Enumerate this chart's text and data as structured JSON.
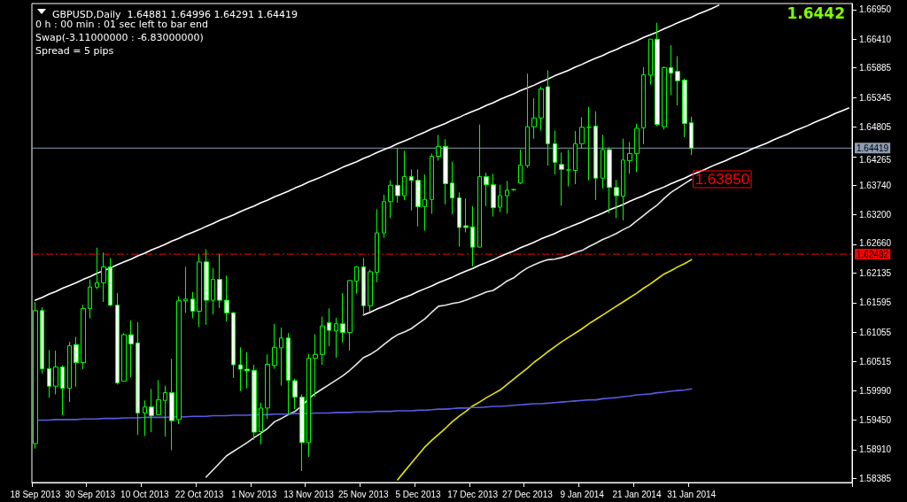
{
  "chart_data": {
    "type": "candlestick",
    "title": "GBPUSD,Daily  1.64881 1.64996 1.64291 1.64419",
    "annotations": [
      "0 h : 00 min : 01 sec left to bar end",
      "Swap(-3.11000000 : -6.83000000)",
      "Spread = 5 pips",
      "1.6442",
      {
        "text": "1.63850",
        "x": "31 Jan 2014",
        "y": 1.6385
      }
    ],
    "categories": [
      "18 Sep 2013",
      null,
      null,
      null,
      null,
      null,
      null,
      null,
      "30 Sep 2013",
      null,
      null,
      null,
      null,
      null,
      null,
      null,
      "10 Oct 2013",
      null,
      null,
      null,
      null,
      null,
      null,
      null,
      "22 Oct 2013",
      null,
      null,
      null,
      null,
      null,
      null,
      null,
      "1 Nov 2013",
      null,
      null,
      null,
      null,
      null,
      null,
      null,
      "13 Nov 2013",
      null,
      null,
      null,
      null,
      null,
      null,
      null,
      "25 Nov 2013",
      null,
      null,
      null,
      null,
      null,
      null,
      null,
      "5 Dec 2013",
      null,
      null,
      null,
      null,
      null,
      null,
      null,
      "17 Dec 2013",
      null,
      null,
      null,
      null,
      null,
      null,
      null,
      "27 Dec 2013",
      null,
      null,
      null,
      null,
      null,
      null,
      null,
      "9 Jan 2014",
      null,
      null,
      null,
      null,
      null,
      null,
      null,
      "21 Jan 2014",
      null,
      null,
      null,
      null,
      null,
      null,
      null,
      "31 Jan 2014",
      null,
      null,
      null,
      null,
      null,
      null,
      null,
      null,
      null,
      null,
      null,
      null,
      null,
      null,
      null,
      null,
      null,
      null,
      null,
      null,
      null,
      null,
      null
    ],
    "ylim": [
      1.5831,
      1.6706
    ],
    "yticks": [
      {
        "value": 1.6695,
        "label": "1.66950"
      },
      {
        "value": 1.6641,
        "label": "1.66410"
      },
      1.65885,
      1.65345,
      1.64805,
      1.64265,
      {
        "value": 1.6374,
        "label": "1.63740"
      },
      {
        "value": 1.632,
        "label": "1.63200"
      },
      {
        "value": 1.6266,
        "label": "1.62660"
      },
      1.62135,
      1.61595,
      1.61055,
      1.60515,
      {
        "value": 1.5999,
        "label": "1.59990"
      },
      {
        "value": 1.5945,
        "label": "1.59450"
      },
      {
        "value": 1.5891,
        "label": "1.58910"
      },
      1.58385
    ],
    "marker": "none",
    "ref_lines": [
      {
        "axis": "y",
        "value": 1.64419,
        "label": "1.64419",
        "color": "#8c9cb0",
        "line_style": "solid"
      },
      {
        "axis": "y",
        "value": 1.62482,
        "label": "1.62482",
        "color": "#ff0000",
        "line_style": "dashed"
      }
    ],
    "series": [
      {
        "type": "candlestick",
        "color": "#00ff00",
        "ohlc": [
          [
            1.5902,
            1.6161,
            1.5893,
            1.6145
          ],
          [
            1.6145,
            1.6151,
            1.603,
            1.6039
          ],
          [
            1.6039,
            1.6073,
            1.5986,
            1.6007
          ],
          [
            1.6007,
            1.6072,
            1.5992,
            1.6042
          ],
          [
            1.6042,
            1.6045,
            1.5954,
            1.6003
          ],
          [
            1.6003,
            1.6088,
            1.5978,
            1.6081
          ],
          [
            1.6083,
            1.6097,
            1.6006,
            1.605
          ],
          [
            1.605,
            1.6156,
            1.6038,
            1.6149
          ],
          [
            1.6149,
            1.6202,
            1.6131,
            1.6188
          ],
          [
            1.6188,
            1.626,
            1.6184,
            1.6196
          ],
          [
            1.6196,
            1.6251,
            1.6161,
            1.6225
          ],
          [
            1.6225,
            1.6241,
            1.6153,
            1.6155
          ],
          [
            1.6155,
            1.6177,
            1.601,
            1.6013
          ],
          [
            1.6016,
            1.6104,
            1.6016,
            1.6101
          ],
          [
            1.6101,
            1.6127,
            1.6023,
            1.6084
          ],
          [
            1.6086,
            1.6124,
            1.5918,
            1.5958
          ],
          [
            1.5958,
            1.5981,
            1.5916,
            1.5969
          ],
          [
            1.5969,
            1.6002,
            1.5923,
            1.5953
          ],
          [
            1.5955,
            1.6018,
            1.5954,
            1.5982
          ],
          [
            1.5981,
            1.6008,
            1.5915,
            1.5995
          ],
          [
            1.5995,
            1.6057,
            1.589,
            1.5944
          ],
          [
            1.5946,
            1.6171,
            1.5938,
            1.6163
          ],
          [
            1.6163,
            1.6225,
            1.6141,
            1.6166
          ],
          [
            1.6166,
            1.6179,
            1.6131,
            1.6144
          ],
          [
            1.6144,
            1.6248,
            1.6115,
            1.6234
          ],
          [
            1.6234,
            1.6257,
            1.6119,
            1.6164
          ],
          [
            1.6164,
            1.6223,
            1.6138,
            1.6202
          ],
          [
            1.6202,
            1.6248,
            1.615,
            1.6164
          ],
          [
            1.6164,
            1.6209,
            1.6125,
            1.6141
          ],
          [
            1.6141,
            1.6143,
            1.6022,
            1.6046
          ],
          [
            1.6046,
            1.6078,
            1.5998,
            1.6038
          ],
          [
            1.6038,
            1.6069,
            1.6003,
            1.6035
          ],
          [
            1.6036,
            1.6046,
            1.5909,
            1.5923
          ],
          [
            1.5924,
            1.5977,
            1.5901,
            1.5967
          ],
          [
            1.5967,
            1.6065,
            1.5947,
            1.6047
          ],
          [
            1.6045,
            1.6121,
            1.6039,
            1.6078
          ],
          [
            1.6077,
            1.6114,
            1.6008,
            1.6095
          ],
          [
            1.6095,
            1.6104,
            1.5955,
            1.6018
          ],
          [
            1.6017,
            1.6021,
            1.5965,
            1.5987
          ],
          [
            1.5987,
            1.5992,
            1.5852,
            1.5904
          ],
          [
            1.5904,
            1.6066,
            1.5878,
            1.6058
          ],
          [
            1.6058,
            1.6102,
            1.5988,
            1.6065
          ],
          [
            1.6065,
            1.6134,
            1.6046,
            1.6117
          ],
          [
            1.6123,
            1.6149,
            1.608,
            1.6109
          ],
          [
            1.6108,
            1.6132,
            1.6059,
            1.6121
          ],
          [
            1.6121,
            1.6177,
            1.6087,
            1.6105
          ],
          [
            1.6105,
            1.62,
            1.6072,
            1.62
          ],
          [
            1.6199,
            1.6226,
            1.6176,
            1.6225
          ],
          [
            1.6225,
            1.6241,
            1.6136,
            1.6154
          ],
          [
            1.6154,
            1.622,
            1.6143,
            1.6216
          ],
          [
            1.6215,
            1.633,
            1.6197,
            1.6287
          ],
          [
            1.6287,
            1.6357,
            1.6278,
            1.6344
          ],
          [
            1.6344,
            1.6383,
            1.6314,
            1.6374
          ],
          [
            1.6374,
            1.6442,
            1.6342,
            1.6355
          ],
          [
            1.6355,
            1.6437,
            1.6347,
            1.639
          ],
          [
            1.639,
            1.6403,
            1.6328,
            1.6383
          ],
          [
            1.6383,
            1.6403,
            1.6299,
            1.6335
          ],
          [
            1.6335,
            1.6394,
            1.6291,
            1.6348
          ],
          [
            1.6348,
            1.6432,
            1.6322,
            1.6427
          ],
          [
            1.6427,
            1.6466,
            1.6419,
            1.6445
          ],
          [
            1.6445,
            1.6458,
            1.6339,
            1.6377
          ],
          [
            1.6378,
            1.6417,
            1.6321,
            1.6351
          ],
          [
            1.6351,
            1.6361,
            1.6262,
            1.6297
          ],
          [
            1.63,
            1.635,
            1.6288,
            1.6297
          ],
          [
            1.6298,
            1.6336,
            1.6226,
            1.6261
          ],
          [
            1.6261,
            1.6485,
            1.6261,
            1.639
          ],
          [
            1.639,
            1.6397,
            1.6336,
            1.6375
          ],
          [
            1.6375,
            1.6395,
            1.6317,
            1.6333
          ],
          [
            1.6334,
            1.6375,
            1.6325,
            1.6355
          ],
          [
            1.6355,
            1.6382,
            1.6322,
            1.6365
          ],
          [
            1.6366,
            1.6368,
            1.6364,
            1.6366
          ],
          [
            1.6378,
            1.6439,
            1.6376,
            1.6411
          ],
          [
            1.641,
            1.6578,
            1.6406,
            1.6481
          ],
          [
            1.6481,
            1.6533,
            1.6459,
            1.6497
          ],
          [
            1.6497,
            1.6554,
            1.6474,
            1.655
          ],
          [
            1.6554,
            1.6584,
            1.641,
            1.645
          ],
          [
            1.645,
            1.6474,
            1.6394,
            1.6416
          ],
          [
            1.6412,
            1.6434,
            1.6337,
            1.6403
          ],
          [
            1.6402,
            1.6439,
            1.6372,
            1.6402
          ],
          [
            1.6401,
            1.6473,
            1.6376,
            1.645
          ],
          [
            1.645,
            1.6498,
            1.6441,
            1.648
          ],
          [
            1.648,
            1.6517,
            1.6383,
            1.648
          ],
          [
            1.6482,
            1.6509,
            1.6347,
            1.6387
          ],
          [
            1.6387,
            1.6466,
            1.6368,
            1.6439
          ],
          [
            1.6439,
            1.6443,
            1.6323,
            1.637
          ],
          [
            1.637,
            1.6384,
            1.6314,
            1.6355
          ],
          [
            1.6354,
            1.6459,
            1.631,
            1.642
          ],
          [
            1.6419,
            1.6453,
            1.6395,
            1.6432
          ],
          [
            1.6432,
            1.6486,
            1.6398,
            1.6478
          ],
          [
            1.6479,
            1.659,
            1.6449,
            1.6576
          ],
          [
            1.6575,
            1.6641,
            1.6558,
            1.6641
          ],
          [
            1.6641,
            1.6671,
            1.6482,
            1.6485
          ],
          [
            1.6481,
            1.6591,
            1.6476,
            1.6589
          ],
          [
            1.6589,
            1.663,
            1.6539,
            1.6579
          ],
          [
            1.6582,
            1.661,
            1.652,
            1.6565
          ],
          [
            1.6566,
            1.6569,
            1.6462,
            1.6487
          ],
          [
            1.64881,
            1.64996,
            1.64291,
            1.64419
          ],
          null,
          null,
          null,
          null,
          null,
          null,
          null,
          null,
          null,
          null,
          null,
          null,
          null,
          null,
          null,
          null,
          null,
          null,
          null,
          null,
          null,
          null,
          null
        ]
      },
      {
        "type": "line",
        "color": "#ffffff",
        "values": [
          1.6164,
          1.6169,
          1.6175,
          1.618,
          1.6186,
          1.6191,
          1.6196,
          1.6202,
          1.6207,
          1.6213,
          1.6218,
          1.6223,
          1.6229,
          1.6234,
          1.6239,
          1.6245,
          1.625,
          1.6256,
          1.6261,
          1.6266,
          1.6272,
          1.6277,
          1.6283,
          1.6288,
          1.6293,
          1.6299,
          1.6304,
          1.631,
          1.6315,
          1.632,
          1.6326,
          1.6331,
          1.6336,
          1.6342,
          1.6347,
          1.6353,
          1.6358,
          1.6363,
          1.6369,
          1.6374,
          1.638,
          1.6385,
          1.639,
          1.6396,
          1.6401,
          1.6407,
          1.6412,
          1.6417,
          1.6423,
          1.6428,
          1.6434,
          1.6439,
          1.6444,
          1.645,
          1.6455,
          1.646,
          1.6466,
          1.6471,
          1.6477,
          1.6482,
          1.6487,
          1.6493,
          1.6498,
          1.6504,
          1.6509,
          1.6514,
          1.652,
          1.6525,
          1.6531,
          1.6536,
          1.6541,
          1.6547,
          1.6552,
          1.6557,
          1.6563,
          1.6568,
          1.6574,
          1.6579,
          1.6584,
          1.659,
          1.6595,
          1.6601,
          1.6606,
          1.6611,
          1.6617,
          1.6622,
          1.6628,
          1.6633,
          1.6638,
          1.6644,
          1.6649,
          1.6654,
          1.666,
          1.6665,
          1.6671,
          1.6676,
          1.6681,
          1.6687,
          1.6692,
          1.6697,
          1.6703,
          null,
          null,
          null,
          null,
          null,
          null,
          null,
          null,
          null,
          null,
          null,
          null,
          null,
          null,
          null,
          null,
          null,
          null,
          null
        ]
      },
      {
        "type": "line",
        "color": "#ffffff",
        "values": [
          null,
          null,
          null,
          null,
          null,
          null,
          null,
          null,
          null,
          null,
          null,
          null,
          null,
          null,
          null,
          null,
          null,
          null,
          null,
          null,
          null,
          null,
          null,
          null,
          null,
          null,
          null,
          null,
          null,
          null,
          null,
          null,
          null,
          null,
          null,
          null,
          null,
          null,
          null,
          null,
          null,
          null,
          null,
          null,
          null,
          null,
          null,
          null,
          1.6137,
          1.6142,
          1.6148,
          1.6153,
          1.6158,
          1.6164,
          1.6169,
          1.6174,
          1.618,
          1.6185,
          1.619,
          1.6196,
          1.6201,
          1.6206,
          1.6212,
          1.6217,
          1.6222,
          1.6228,
          1.6233,
          1.6238,
          1.6244,
          1.6249,
          1.6254,
          1.626,
          1.6265,
          1.627,
          1.6276,
          1.6281,
          1.6286,
          1.6292,
          1.6297,
          1.6302,
          1.6307,
          1.6313,
          1.6318,
          1.6323,
          1.6329,
          1.6334,
          1.6339,
          1.6345,
          1.635,
          1.6355,
          1.6361,
          1.6366,
          1.6371,
          1.6377,
          1.6382,
          1.6387,
          1.6393,
          1.6398,
          1.6403,
          1.6409,
          1.6414,
          1.6419,
          1.6425,
          1.643,
          1.6435,
          1.6441,
          1.6446,
          1.6451,
          1.6457,
          1.6462,
          1.6467,
          1.6473,
          1.6478,
          1.6483,
          1.6489,
          1.6494,
          1.6499,
          1.6505,
          1.651,
          1.6515
        ]
      },
      {
        "type": "line",
        "color": "#e8e8e8",
        "values": [
          null,
          null,
          null,
          null,
          null,
          null,
          null,
          null,
          null,
          null,
          null,
          null,
          null,
          null,
          null,
          null,
          null,
          null,
          null,
          null,
          null,
          null,
          null,
          null,
          null,
          1.5841,
          1.5854,
          1.5867,
          1.588,
          1.5888,
          1.5896,
          1.5904,
          1.5913,
          1.5921,
          1.593,
          1.5942,
          1.5948,
          1.5955,
          1.5961,
          1.5971,
          1.5984,
          1.5994,
          1.6002,
          1.601,
          1.6018,
          1.6026,
          1.6036,
          1.6047,
          1.6059,
          1.6065,
          1.6073,
          1.6083,
          1.6093,
          1.6101,
          1.6106,
          1.6112,
          1.6121,
          1.613,
          1.6142,
          1.6153,
          1.6155,
          1.6158,
          1.616,
          1.6164,
          1.6169,
          1.6174,
          1.6179,
          1.6182,
          1.619,
          1.6199,
          1.6205,
          1.6215,
          1.6223,
          1.6229,
          1.6234,
          1.6238,
          1.6239,
          1.6242,
          1.6246,
          1.6251,
          1.6255,
          1.6262,
          1.6268,
          1.6275,
          1.628,
          1.6286,
          1.6293,
          1.6299,
          1.6309,
          1.6319,
          1.6329,
          1.6338,
          1.635,
          1.6361,
          1.6369,
          1.6377,
          1.6385,
          null,
          null,
          null,
          null,
          null,
          null,
          null,
          null,
          null,
          null,
          null,
          null,
          null,
          null,
          null,
          null,
          null,
          null,
          null,
          null,
          null,
          null,
          null
        ]
      },
      {
        "type": "line",
        "color": "#e6e600",
        "values": [
          null,
          null,
          null,
          null,
          null,
          null,
          null,
          null,
          null,
          null,
          null,
          null,
          null,
          null,
          null,
          null,
          null,
          null,
          null,
          null,
          null,
          null,
          null,
          null,
          null,
          null,
          null,
          null,
          null,
          null,
          null,
          null,
          null,
          null,
          null,
          null,
          null,
          null,
          null,
          null,
          null,
          null,
          null,
          null,
          null,
          null,
          null,
          null,
          null,
          null,
          null,
          null,
          null,
          1.5836,
          1.5851,
          1.5866,
          1.5881,
          1.5896,
          1.5908,
          1.5919,
          1.593,
          1.5942,
          1.5952,
          1.5961,
          1.5971,
          1.5978,
          1.5986,
          1.5993,
          1.6,
          1.601,
          1.602,
          1.603,
          1.604,
          1.6051,
          1.606,
          1.607,
          1.6079,
          1.6088,
          1.6096,
          1.6104,
          1.6112,
          1.6121,
          1.6129,
          1.6137,
          1.6145,
          1.6153,
          1.6161,
          1.6169,
          1.6177,
          1.6186,
          1.6194,
          1.6203,
          1.6212,
          1.6218,
          1.6225,
          1.6231,
          1.6238,
          null,
          null,
          null,
          null,
          null,
          null,
          null,
          null,
          null,
          null,
          null,
          null,
          null,
          null,
          null,
          null,
          null,
          null,
          null,
          null,
          null,
          null,
          null
        ]
      },
      {
        "type": "line",
        "color": "#5a5ae6",
        "values": [
          1.5945,
          1.5945,
          1.5945,
          1.5946,
          1.5946,
          1.5946,
          1.5946,
          1.5947,
          1.5947,
          1.5947,
          1.5948,
          1.5948,
          1.5948,
          1.5949,
          1.5949,
          1.5949,
          1.595,
          1.595,
          1.595,
          1.595,
          1.5951,
          1.5951,
          1.5951,
          1.5952,
          1.5952,
          1.5952,
          1.5953,
          1.5953,
          1.5953,
          1.5954,
          1.5954,
          1.5954,
          1.5955,
          1.5955,
          1.5955,
          1.5956,
          1.5956,
          1.5956,
          1.5957,
          1.5957,
          1.5957,
          1.5958,
          1.5958,
          1.5958,
          1.5959,
          1.5959,
          1.5959,
          1.596,
          1.596,
          1.596,
          1.5961,
          1.5961,
          1.5961,
          1.5962,
          1.5962,
          1.5962,
          1.5963,
          1.5963,
          1.5964,
          1.5965,
          1.5965,
          1.5966,
          1.5967,
          1.5967,
          1.5968,
          1.5968,
          1.5969,
          1.597,
          1.597,
          1.5971,
          1.5972,
          1.5973,
          1.5974,
          1.5975,
          1.5975,
          1.5976,
          1.5977,
          1.5978,
          1.5979,
          1.598,
          1.5981,
          1.5982,
          1.5982,
          1.5984,
          1.5985,
          1.5986,
          1.5988,
          1.5989,
          1.5991,
          1.5992,
          1.5993,
          1.5995,
          1.5996,
          1.5998,
          1.5999,
          1.6,
          1.6002,
          null,
          null,
          null,
          null,
          null,
          null,
          null,
          null,
          null,
          null,
          null,
          null,
          null,
          null,
          null,
          null,
          null,
          null,
          null,
          null,
          null,
          null,
          null
        ]
      }
    ]
  }
}
